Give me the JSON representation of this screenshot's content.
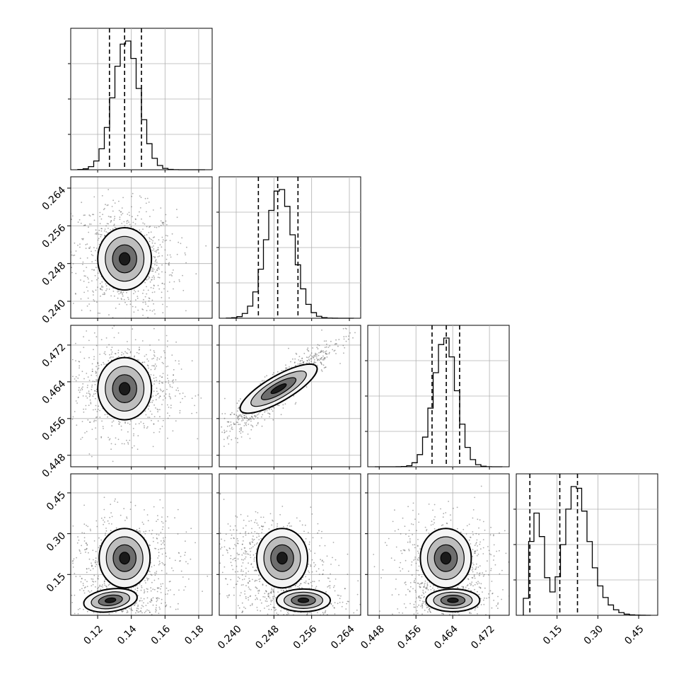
{
  "chart_data": {
    "type": "corner",
    "parameters": [
      {
        "name": "",
        "range": [
          0.104,
          0.188
        ],
        "ticks": [
          "0.12",
          "0.14",
          "0.16",
          "0.18"
        ],
        "quantiles": [
          0.127,
          0.136,
          0.146
        ],
        "peak": 0.136,
        "sigma": 0.0085
      },
      {
        "name": "",
        "range": [
          0.2364,
          0.2664
        ],
        "ticks": [
          "0.240",
          "0.248",
          "0.256",
          "0.264"
        ],
        "quantiles": [
          0.2447,
          0.2488,
          0.2531
        ],
        "peak": 0.249,
        "sigma": 0.0032
      },
      {
        "name": "",
        "range": [
          0.4455,
          0.4763
        ],
        "ticks": [
          "0.448",
          "0.456",
          "0.464",
          "0.472"
        ],
        "quantiles": [
          0.4595,
          0.4626,
          0.4655
        ],
        "peak": 0.4625,
        "sigma": 0.0028
      },
      {
        "name": "",
        "range": [
          0.0,
          0.52
        ],
        "ticks": [
          "0.15",
          "0.30",
          "0.45"
        ],
        "quantiles": [
          0.05,
          0.16,
          0.225
        ],
        "peak": 0.16,
        "sigma": 0.06,
        "bimodal": {
          "low": 0.055,
          "high": 0.21
        }
      }
    ],
    "histogram_y_ticks": 3,
    "grid": true,
    "contour_levels": 4,
    "legend": "none",
    "title": "",
    "colors": {
      "line": "#000000",
      "grid": "#b0b0b0",
      "fill_dark": "#1a1a1a",
      "fill_light": "#f2f2f2",
      "scatter": "#444444"
    }
  }
}
